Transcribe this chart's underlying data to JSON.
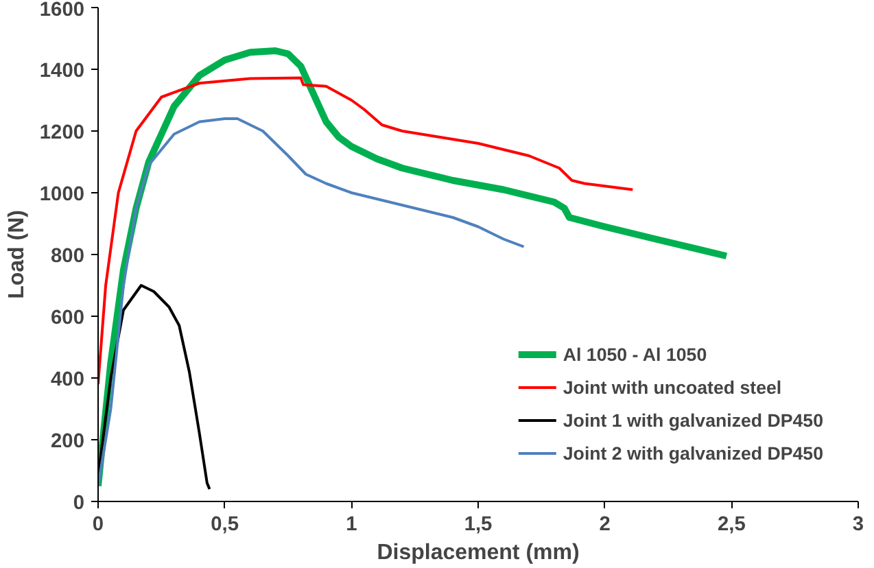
{
  "chart_data": {
    "type": "line",
    "xlabel": "Displacement (mm)",
    "ylabel": "Load (N)",
    "xlim": [
      0,
      3
    ],
    "ylim": [
      0,
      1600
    ],
    "xticks": [
      0,
      {
        "value": 0.5,
        "label": "0,5"
      },
      1,
      {
        "value": 1.5,
        "label": "1,5"
      },
      2,
      {
        "value": 2.5,
        "label": "2,5"
      },
      3
    ],
    "yticks": [
      0,
      200,
      400,
      600,
      800,
      1000,
      1200,
      1400,
      1600
    ],
    "grid": false,
    "legend": "bottom right",
    "marker": "none",
    "line_style": "solid",
    "series": [
      {
        "name": "Al 1050 - Al 1050",
        "color": "#00b050",
        "x": [
          0,
          0.05,
          0.1,
          0.15,
          0.2,
          0.3,
          0.4,
          0.5,
          0.6,
          0.7,
          0.75,
          0.8,
          0.85,
          0.9,
          0.95,
          1.0,
          1.1,
          1.2,
          1.4,
          1.6,
          1.8,
          1.84,
          1.86,
          2.0,
          2.2,
          2.48
        ],
        "values": [
          50,
          450,
          750,
          950,
          1100,
          1280,
          1380,
          1430,
          1455,
          1460,
          1450,
          1410,
          1320,
          1230,
          1180,
          1150,
          1110,
          1080,
          1040,
          1010,
          970,
          950,
          920,
          890,
          850,
          795
        ]
      },
      {
        "name": "Joint with uncoated steel",
        "color": "#ff0000",
        "x": [
          0,
          0.03,
          0.08,
          0.15,
          0.25,
          0.4,
          0.6,
          0.8,
          0.81,
          0.9,
          1.0,
          1.05,
          1.12,
          1.2,
          1.5,
          1.7,
          1.82,
          1.87,
          1.92,
          2.11
        ],
        "values": [
          380,
          700,
          1000,
          1200,
          1310,
          1355,
          1370,
          1372,
          1350,
          1345,
          1300,
          1270,
          1220,
          1200,
          1160,
          1120,
          1080,
          1040,
          1030,
          1010
        ]
      },
      {
        "name": "Joint 1 with galvanized DP450",
        "color": "#000000",
        "x": [
          0,
          0.05,
          0.1,
          0.17,
          0.22,
          0.28,
          0.32,
          0.36,
          0.4,
          0.43,
          0.44
        ],
        "values": [
          80,
          400,
          620,
          700,
          680,
          630,
          570,
          420,
          220,
          60,
          40
        ]
      },
      {
        "name": "Joint 2 with galvanized DP450",
        "color": "#4f81bd",
        "x": [
          0,
          0.05,
          0.1,
          0.15,
          0.2,
          0.3,
          0.4,
          0.5,
          0.55,
          0.65,
          0.75,
          0.82,
          0.9,
          1.0,
          1.2,
          1.4,
          1.5,
          1.6,
          1.68
        ],
        "values": [
          50,
          300,
          700,
          950,
          1090,
          1190,
          1230,
          1240,
          1240,
          1200,
          1120,
          1060,
          1030,
          1000,
          960,
          920,
          890,
          850,
          825
        ]
      }
    ]
  }
}
